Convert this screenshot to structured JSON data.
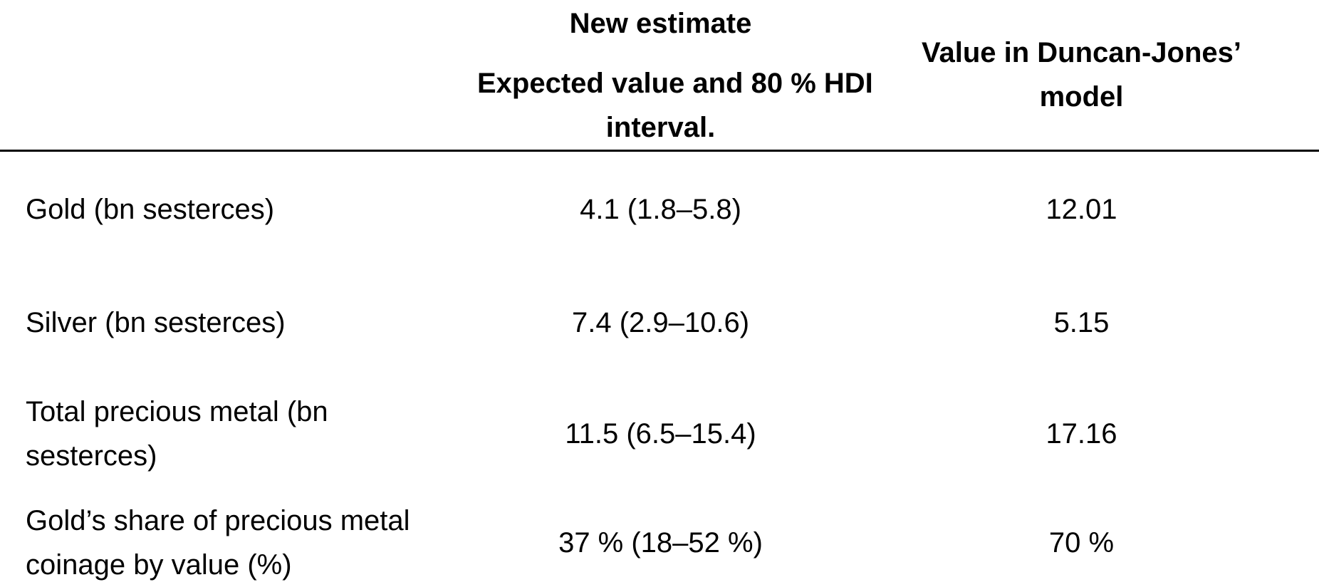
{
  "table": {
    "header": {
      "corner": "",
      "new_estimate": {
        "title": "New estimate",
        "subtitle_lines": [
          "Expected value and 80 % HDI",
          "interval."
        ]
      },
      "duncan_jones": {
        "lines": [
          "Value in Duncan-Jones’",
          "model"
        ]
      }
    },
    "rows": [
      {
        "label_lines": [
          "Gold (bn sesterces)",
          ""
        ],
        "new_estimate": "4.1 (1.8–5.8)",
        "duncan_jones": "12.01"
      },
      {
        "label_lines": [
          "Silver (bn sesterces)",
          ""
        ],
        "new_estimate": "7.4 (2.9–10.6)",
        "duncan_jones": "5.15"
      },
      {
        "label_lines": [
          "Total precious metal (bn",
          "sesterces)"
        ],
        "new_estimate": "11.5 (6.5–15.4)",
        "duncan_jones": "17.16"
      },
      {
        "label_lines": [
          "Gold’s share of precious metal",
          "coinage by value (%)"
        ],
        "new_estimate": "37 % (18–52 %)",
        "duncan_jones": "70 %"
      }
    ],
    "colors": {
      "text": "#000000",
      "background": "#ffffff",
      "header_rule": "#000000"
    }
  }
}
